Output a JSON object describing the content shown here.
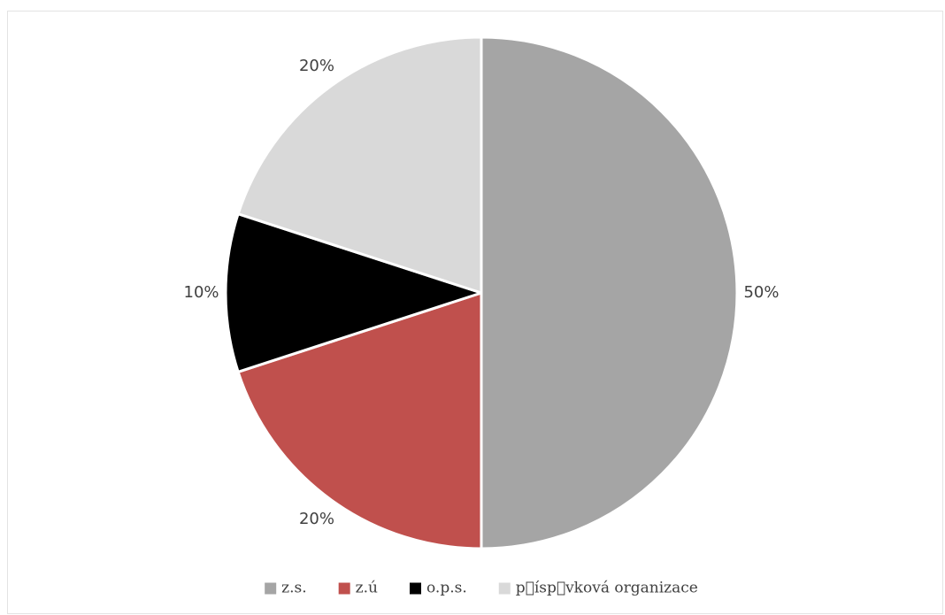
{
  "chart_data": {
    "type": "pie",
    "categories": [
      "z.s.",
      "z.ú",
      "o.p.s.",
      "p\u0000ísp\u0000vková organizace"
    ],
    "values": [
      50,
      20,
      10,
      20
    ],
    "data_labels": [
      "50%",
      "20%",
      "10%",
      "20%"
    ],
    "colors": [
      "#a5a5a5",
      "#c0504d",
      "#000000",
      "#d9d9d9"
    ],
    "legend_position": "bottom",
    "start_angle_deg": 0,
    "direction": "clockwise"
  }
}
